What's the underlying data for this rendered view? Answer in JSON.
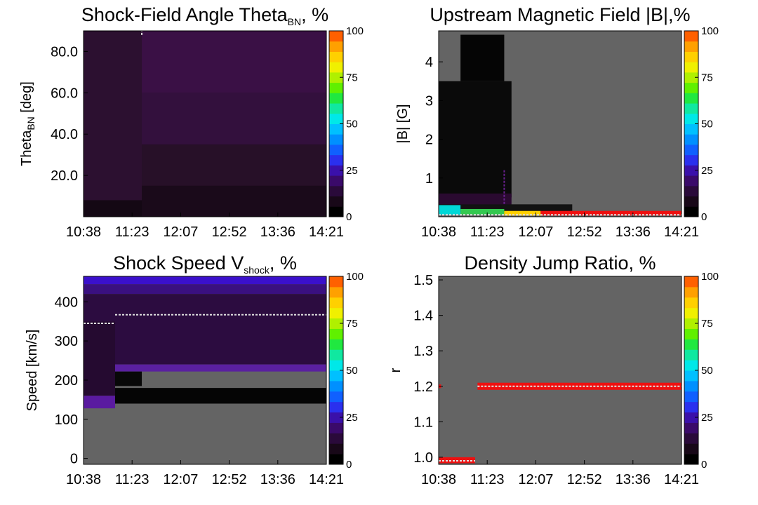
{
  "chart_data": [
    {
      "id": "theta",
      "type": "heatmap",
      "title": "Shock-Field Angle Theta",
      "title_sub": "BN",
      "title_suffix": ", %",
      "ylabel": "Theta",
      "ylabel_sub": "BN",
      "ylabel_suffix": " [deg]",
      "x_ticks": [
        "10:38",
        "11:23",
        "12:07",
        "12:52",
        "13:36",
        "14:21"
      ],
      "ylim": [
        0,
        90
      ],
      "y_ticks": [
        20,
        40,
        60,
        80
      ],
      "y_tick_labels": [
        "20.0",
        "40.0",
        "60.0",
        "80.0"
      ],
      "background": "#201020",
      "cells": [
        {
          "x0": 0.0,
          "x1": 0.24,
          "y0": 0,
          "y1": 90,
          "color": "#2c1030"
        },
        {
          "x0": 0.24,
          "x1": 1.0,
          "y0": 60,
          "y1": 90,
          "color": "#3a1045"
        },
        {
          "x0": 0.24,
          "x1": 1.0,
          "y0": 35,
          "y1": 60,
          "color": "#33103d"
        },
        {
          "x0": 0.24,
          "x1": 1.0,
          "y0": 15,
          "y1": 35,
          "color": "#271028"
        },
        {
          "x0": 0.24,
          "x1": 1.0,
          "y0": 0,
          "y1": 15,
          "color": "#1a0a1a"
        },
        {
          "x0": 0.0,
          "x1": 0.24,
          "y0": 0,
          "y1": 8,
          "color": "#140814"
        }
      ],
      "lines": [
        {
          "points": [
            [
              0.24,
              88
            ],
            [
              0.24,
              90
            ]
          ],
          "color": "#e0e0e0"
        }
      ]
    },
    {
      "id": "bfield",
      "type": "heatmap",
      "title": "Upstream Magnetic Field |B|,%",
      "ylabel": "|B| [G]",
      "x_ticks": [
        "10:38",
        "11:23",
        "12:07",
        "12:52",
        "13:36",
        "14:21"
      ],
      "ylim": [
        0,
        4.8
      ],
      "y_ticks": [
        1,
        2,
        3,
        4
      ],
      "y_tick_labels": [
        "1",
        "2",
        "3",
        "4"
      ],
      "background": "#646464",
      "cells": [
        {
          "x0": 0.0,
          "x1": 0.3,
          "y0": 0.5,
          "y1": 3.5,
          "color": "#0a0a0a"
        },
        {
          "x0": 0.09,
          "x1": 0.27,
          "y0": 3.5,
          "y1": 4.7,
          "color": "#050505"
        },
        {
          "x0": 0.0,
          "x1": 0.3,
          "y0": 0.3,
          "y1": 0.6,
          "color": "#2a0a30"
        },
        {
          "x0": 0.0,
          "x1": 0.55,
          "y0": 0.12,
          "y1": 0.32,
          "color": "#121212"
        },
        {
          "x0": 0.0,
          "x1": 0.09,
          "y0": 0.05,
          "y1": 0.3,
          "color": "#00d8d8"
        },
        {
          "x0": 0.09,
          "x1": 0.27,
          "y0": 0.05,
          "y1": 0.2,
          "color": "#34c850"
        },
        {
          "x0": 0.27,
          "x1": 0.42,
          "y0": 0.03,
          "y1": 0.15,
          "color": "#ffd000"
        },
        {
          "x0": 0.42,
          "x1": 1.0,
          "y0": 0.03,
          "y1": 0.15,
          "color": "#ee1010"
        }
      ],
      "lines": [
        {
          "points": [
            [
              0.0,
              0.05
            ],
            [
              1.0,
              0.05
            ]
          ],
          "color": "#e0e0e0"
        },
        {
          "points": [
            [
              0.27,
              1.2
            ],
            [
              0.27,
              0.3
            ]
          ],
          "color": "#6a2090"
        }
      ]
    },
    {
      "id": "speed",
      "type": "heatmap",
      "title": "Shock Speed V",
      "title_sub": "shock",
      "title_suffix": ", %",
      "ylabel": "Speed [km/s]",
      "x_ticks": [
        "10:38",
        "11:23",
        "12:07",
        "12:52",
        "13:36",
        "14:21"
      ],
      "ylim": [
        -15,
        465
      ],
      "y_ticks": [
        0,
        100,
        200,
        300,
        400
      ],
      "y_tick_labels": [
        "0",
        "100",
        "200",
        "300",
        "400"
      ],
      "background": "#646464",
      "cells": [
        {
          "x0": 0.0,
          "x1": 1.0,
          "y0": 445,
          "y1": 465,
          "color": "#3a10cc"
        },
        {
          "x0": 0.0,
          "x1": 1.0,
          "y0": 420,
          "y1": 445,
          "color": "#3a1080"
        },
        {
          "x0": 0.0,
          "x1": 1.0,
          "y0": 240,
          "y1": 420,
          "color": "#2c0c40"
        },
        {
          "x0": 0.13,
          "x1": 1.0,
          "y0": 222,
          "y1": 240,
          "color": "#5a20a0"
        },
        {
          "x0": 0.0,
          "x1": 0.13,
          "y0": 160,
          "y1": 350,
          "color": "#250a30"
        },
        {
          "x0": 0.0,
          "x1": 0.13,
          "y0": 128,
          "y1": 160,
          "color": "#5a1aa0"
        },
        {
          "x0": 0.13,
          "x1": 0.24,
          "y0": 185,
          "y1": 222,
          "color": "#080808"
        },
        {
          "x0": 0.13,
          "x1": 1.0,
          "y0": 140,
          "y1": 180,
          "color": "#050505"
        }
      ],
      "lines": [
        {
          "points": [
            [
              0.0,
              345
            ],
            [
              0.13,
              345
            ]
          ],
          "color": "#e0e0e0"
        },
        {
          "points": [
            [
              0.13,
              367
            ],
            [
              1.0,
              367
            ]
          ],
          "color": "#e0e0e0"
        }
      ]
    },
    {
      "id": "density",
      "type": "heatmap",
      "title": "Density Jump Ratio, %",
      "ylabel": "r",
      "x_ticks": [
        "10:38",
        "11:23",
        "12:07",
        "12:52",
        "13:36",
        "14:21"
      ],
      "ylim": [
        0.98,
        1.51
      ],
      "y_ticks": [
        1.0,
        1.1,
        1.2,
        1.3,
        1.4,
        1.5
      ],
      "y_tick_labels": [
        "1.0",
        "1.1",
        "1.2",
        "1.3",
        "1.4",
        "1.5"
      ],
      "background": "#646464",
      "cells": [
        {
          "x0": 0.0,
          "x1": 0.15,
          "y0": 0.983,
          "y1": 1.0,
          "color": "#ee1010"
        },
        {
          "x0": 0.16,
          "x1": 1.0,
          "y0": 1.19,
          "y1": 1.21,
          "color": "#ee1010"
        },
        {
          "x0": 0.0,
          "x1": 0.01,
          "y0": 1.195,
          "y1": 1.205,
          "color": "#ee1010"
        }
      ],
      "lines": [
        {
          "points": [
            [
              0.0,
              0.99
            ],
            [
              0.15,
              0.99
            ]
          ],
          "color": "#e0e0e0"
        },
        {
          "points": [
            [
              0.16,
              1.2
            ],
            [
              1.0,
              1.2
            ]
          ],
          "color": "#e0e0e0"
        }
      ]
    }
  ],
  "colorbar": {
    "ticks": [
      "0",
      "25",
      "50",
      "75",
      "100"
    ],
    "colors": [
      "#000000",
      "#180818",
      "#2a0a3a",
      "#3a0a6a",
      "#3a10aa",
      "#2a30ee",
      "#1060ff",
      "#0090ff",
      "#00c0ff",
      "#00e8e8",
      "#10e8a0",
      "#20e840",
      "#60f000",
      "#b0f000",
      "#f0f000",
      "#ffd000",
      "#ffa000",
      "#ff6000"
    ]
  }
}
